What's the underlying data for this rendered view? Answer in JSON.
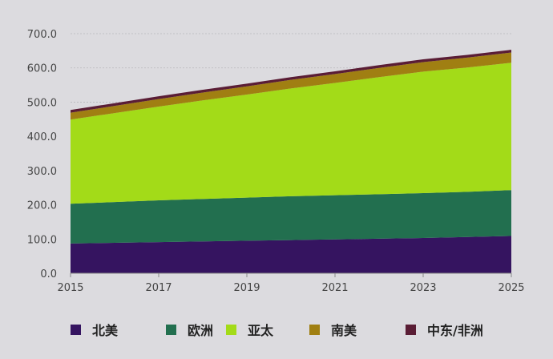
{
  "chart_data": {
    "type": "area",
    "stacked": true,
    "x": [
      2015,
      2016,
      2017,
      2018,
      2019,
      2020,
      2021,
      2022,
      2023,
      2024,
      2025
    ],
    "xticks": [
      "2015",
      "2017",
      "2019",
      "2021",
      "2023",
      "2025"
    ],
    "yticks": [
      "0.0",
      "100.0",
      "200.0",
      "300.0",
      "400.0",
      "500.0",
      "600.0",
      "700.0"
    ],
    "ylim": [
      0,
      700
    ],
    "grid": true,
    "legend_position": "bottom",
    "series": [
      {
        "name": "北美",
        "color": "#351460",
        "values": [
          87,
          89,
          91,
          93,
          95,
          97,
          99,
          101,
          103,
          106,
          109
        ]
      },
      {
        "name": "欧洲",
        "color": "#226f4f",
        "values": [
          116,
          119,
          122,
          124,
          126,
          128,
          129,
          130,
          131,
          132,
          134
        ]
      },
      {
        "name": "亚太",
        "color": "#a3db18",
        "values": [
          246,
          260,
          274,
          288,
          301,
          315,
          328,
          342,
          355,
          363,
          372
        ]
      },
      {
        "name": "南美",
        "color": "#a07f12",
        "values": [
          20,
          21,
          22,
          23,
          24,
          25,
          26,
          27,
          28,
          29,
          30
        ]
      },
      {
        "name": "中东/非洲",
        "color": "#5a1d35",
        "values": [
          8,
          8,
          8,
          8,
          8,
          8,
          8,
          8,
          8,
          8,
          8
        ]
      }
    ],
    "title": "",
    "xlabel": "",
    "ylabel": ""
  }
}
